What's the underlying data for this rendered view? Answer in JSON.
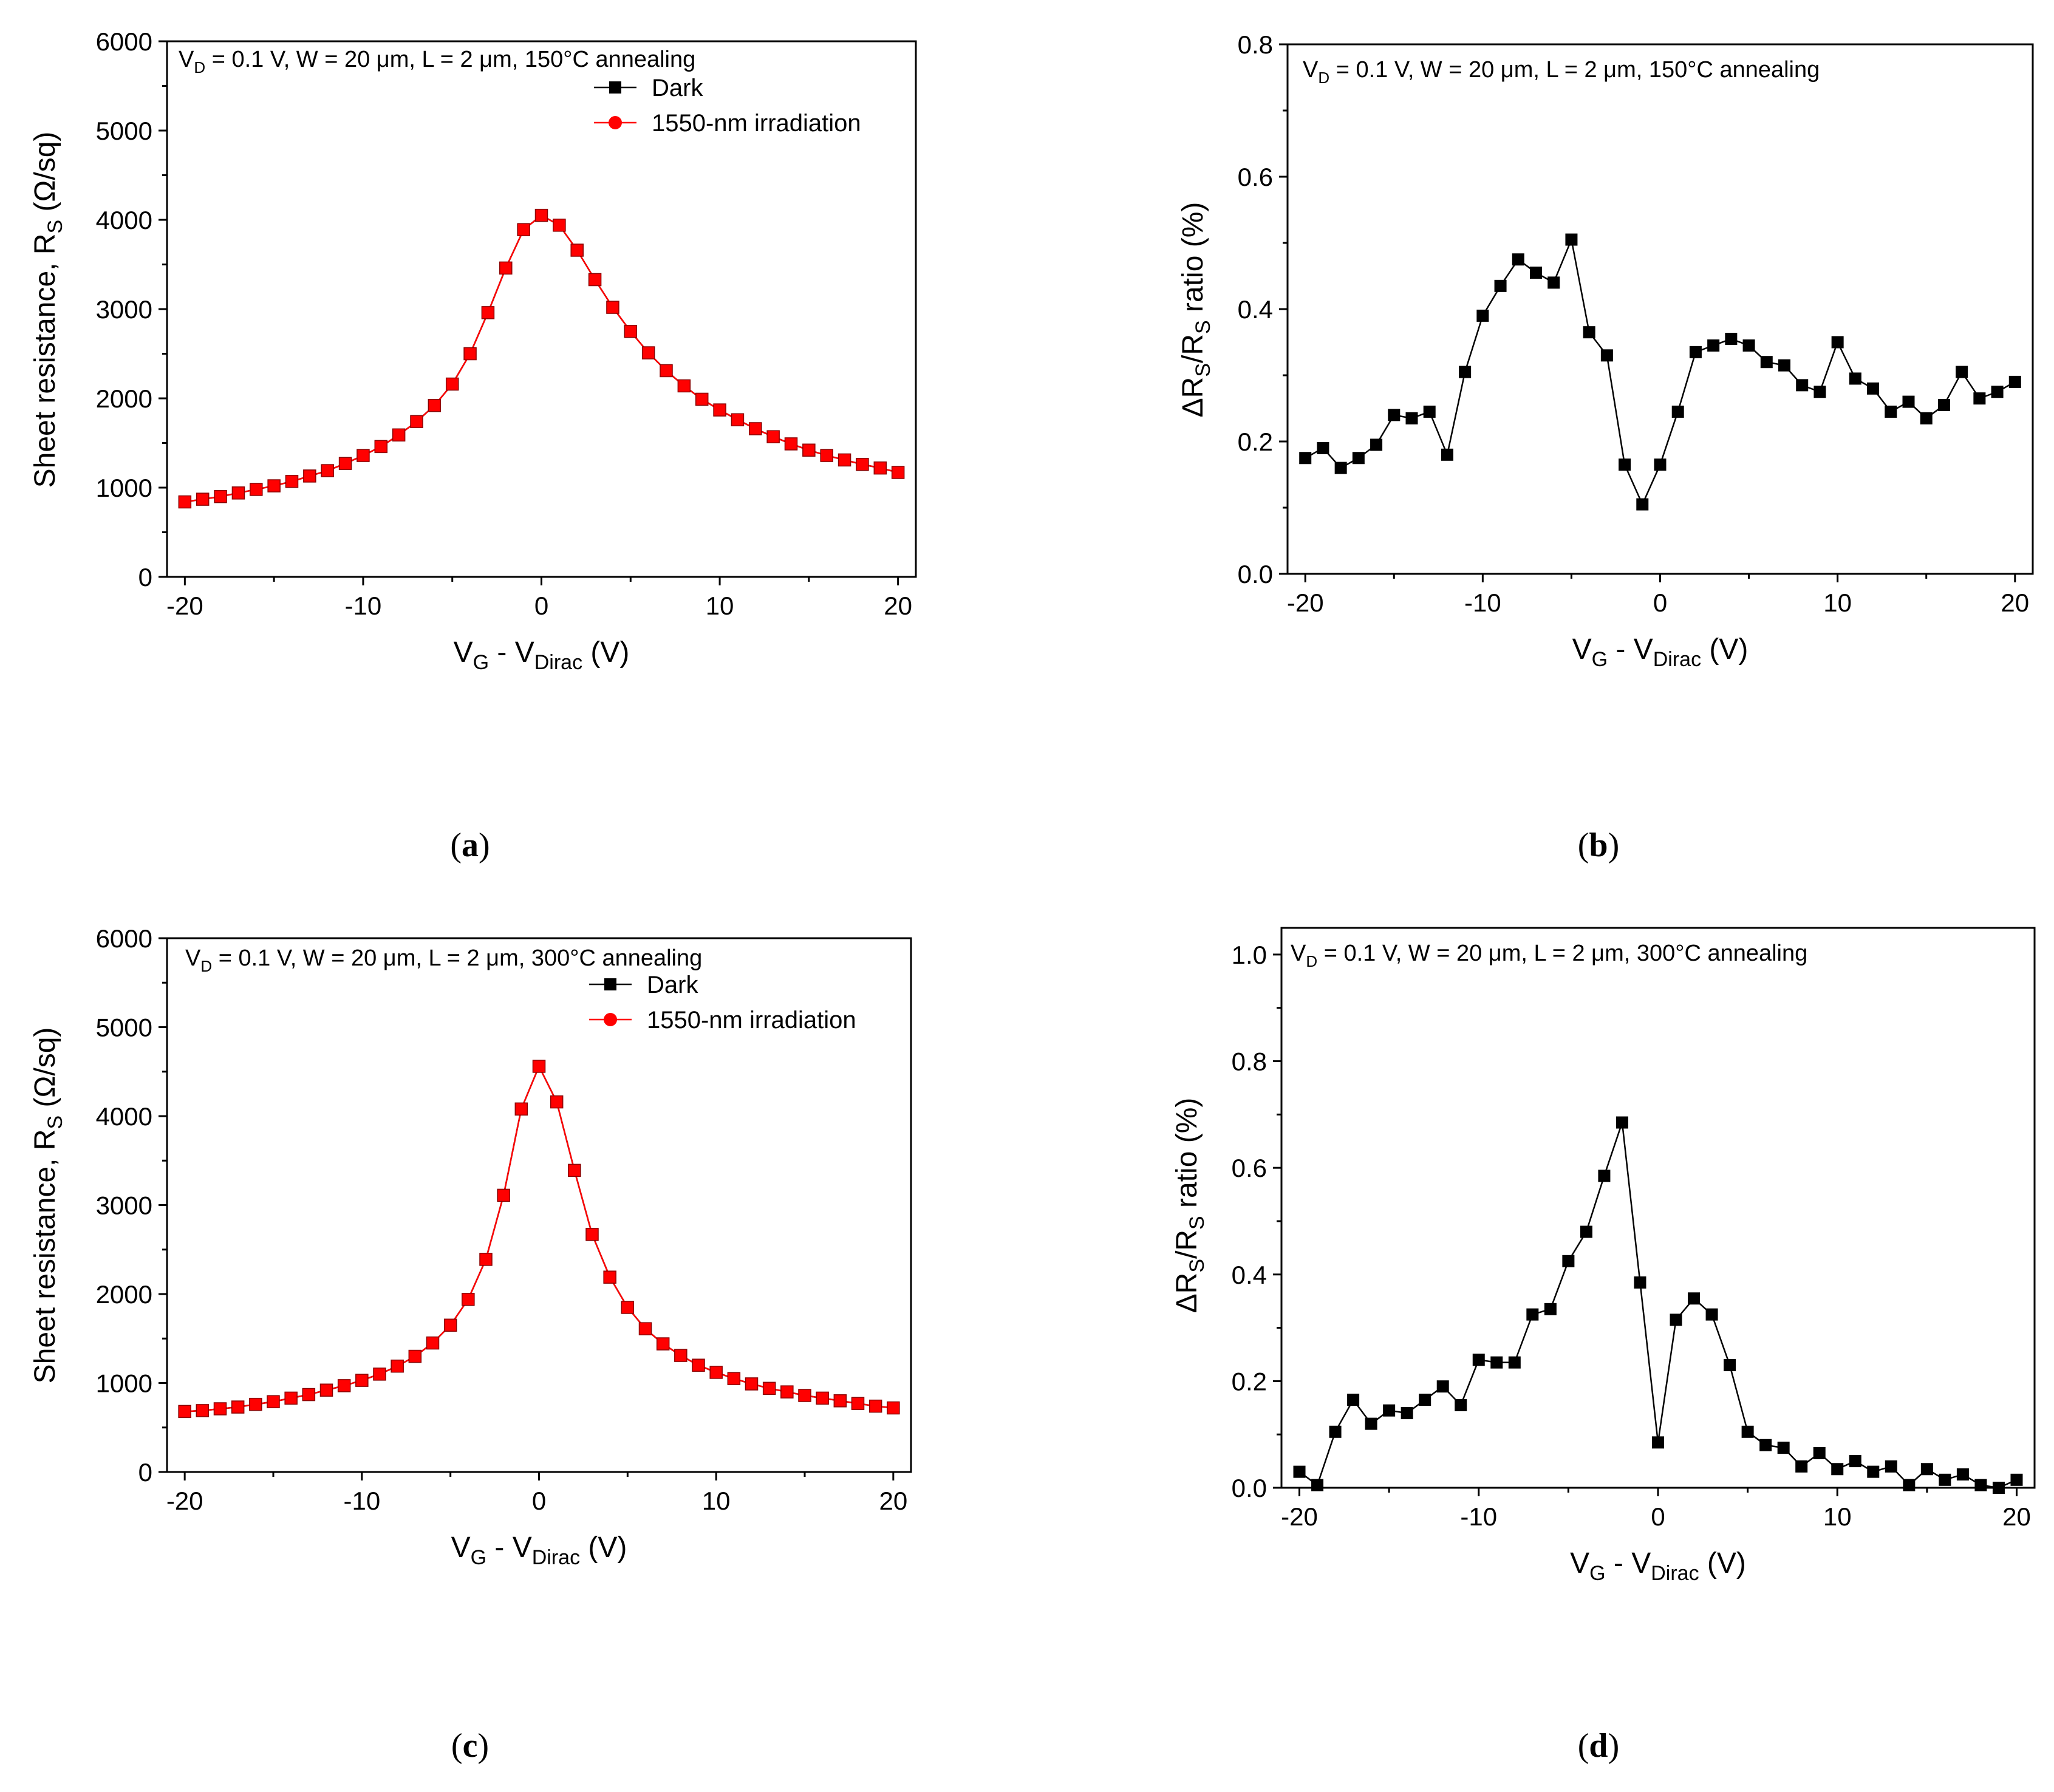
{
  "figure": {
    "captions": [
      "(a)",
      "(b)",
      "(c)",
      "(d)"
    ]
  },
  "chart_data": [
    {
      "id": "a",
      "type": "line",
      "caption": "(a)",
      "annotation": {
        "prefix": "V",
        "sub": "D",
        "rest": " = 0.1 V, W = 20 μm, L = 2 μm, 150°C annealing"
      },
      "xlabel": {
        "main": "V",
        "sub1": "G",
        "mid": " - V",
        "sub2": "Dirac",
        "tail": " (V)"
      },
      "ylabel": {
        "main": "Sheet resistance, R",
        "sub": "S",
        "tail": " (Ω/sq)"
      },
      "xlim": [
        -21,
        21
      ],
      "ylim": [
        0,
        6000
      ],
      "xticks": [
        -20,
        -10,
        0,
        10,
        20
      ],
      "yticks": [
        0,
        1000,
        2000,
        3000,
        4000,
        5000,
        6000
      ],
      "x": [
        -20,
        -19,
        -18,
        -17,
        -16,
        -15,
        -14,
        -13,
        -12,
        -11,
        -10,
        -9,
        -8,
        -7,
        -6,
        -5,
        -4,
        -3,
        -2,
        -1,
        0,
        1,
        2,
        3,
        4,
        5,
        6,
        7,
        8,
        9,
        10,
        11,
        12,
        13,
        14,
        15,
        16,
        17,
        18,
        19,
        20
      ],
      "series": [
        {
          "name": "Dark",
          "color": "#000000",
          "values": [
            840,
            870,
            900,
            940,
            980,
            1020,
            1070,
            1130,
            1190,
            1270,
            1360,
            1460,
            1590,
            1740,
            1920,
            2160,
            2500,
            2960,
            3460,
            3890,
            4050,
            3940,
            3660,
            3330,
            3020,
            2750,
            2510,
            2310,
            2140,
            1990,
            1870,
            1760,
            1660,
            1570,
            1490,
            1420,
            1360,
            1310,
            1260,
            1220,
            1170
          ]
        },
        {
          "name": "1550-nm irradiation",
          "color": "#ff0000",
          "values": [
            840,
            870,
            900,
            940,
            980,
            1020,
            1070,
            1130,
            1190,
            1270,
            1360,
            1460,
            1590,
            1740,
            1920,
            2160,
            2500,
            2960,
            3460,
            3890,
            4050,
            3940,
            3660,
            3330,
            3020,
            2750,
            2510,
            2310,
            2140,
            1990,
            1870,
            1760,
            1660,
            1570,
            1490,
            1420,
            1360,
            1310,
            1260,
            1220,
            1170
          ]
        }
      ],
      "legend": "top-right"
    },
    {
      "id": "b",
      "type": "line",
      "caption": "(b)",
      "annotation": {
        "prefix": "V",
        "sub": "D",
        "rest": " = 0.1 V, W = 20 μm, L = 2 μm, 150°C annealing"
      },
      "xlabel": {
        "main": "V",
        "sub1": "G",
        "mid": " - V",
        "sub2": "Dirac",
        "tail": " (V)"
      },
      "ylabel": {
        "main": "ΔR",
        "sub": "S",
        "mid": "/R",
        "sub2": "S",
        "tail": " ratio (%)"
      },
      "xlim": [
        -21,
        21
      ],
      "ylim": [
        0,
        0.8
      ],
      "xticks": [
        -20,
        -10,
        0,
        10,
        20
      ],
      "yticks": [
        "0.0",
        "0.2",
        "0.4",
        "0.6",
        "0.8"
      ],
      "x": [
        -20,
        -19,
        -18,
        -17,
        -16,
        -15,
        -14,
        -13,
        -12,
        -11,
        -10,
        -9,
        -8,
        -7,
        -6,
        -5,
        -4,
        -3,
        -2,
        -1,
        0,
        1,
        2,
        3,
        4,
        5,
        6,
        7,
        8,
        9,
        10,
        11,
        12,
        13,
        14,
        15,
        16,
        17,
        18,
        19,
        20
      ],
      "series": [
        {
          "name": "ΔRs/Rs",
          "color": "#000000",
          "values": [
            0.175,
            0.19,
            0.16,
            0.175,
            0.195,
            0.24,
            0.235,
            0.245,
            0.18,
            0.305,
            0.39,
            0.435,
            0.475,
            0.455,
            0.44,
            0.505,
            0.365,
            0.33,
            0.165,
            0.105,
            0.165,
            0.245,
            0.335,
            0.345,
            0.355,
            0.345,
            0.32,
            0.315,
            0.285,
            0.275,
            0.35,
            0.295,
            0.28,
            0.245,
            0.26,
            0.235,
            0.255,
            0.305,
            0.265,
            0.275,
            0.29
          ]
        }
      ]
    },
    {
      "id": "c",
      "type": "line",
      "caption": "(c)",
      "annotation": {
        "prefix": "V",
        "sub": "D",
        "rest": " = 0.1 V, W = 20 μm, L = 2 μm, 300°C annealing"
      },
      "xlabel": {
        "main": "V",
        "sub1": "G",
        "mid": " - V",
        "sub2": "Dirac",
        "tail": " (V)"
      },
      "ylabel": {
        "main": "Sheet resistance, R",
        "sub": "S",
        "tail": " (Ω/sq)"
      },
      "xlim": [
        -21,
        21
      ],
      "ylim": [
        0,
        6000
      ],
      "xticks": [
        -20,
        -10,
        0,
        10,
        20
      ],
      "yticks": [
        0,
        1000,
        2000,
        3000,
        4000,
        5000,
        6000
      ],
      "x": [
        -20,
        -19,
        -18,
        -17,
        -16,
        -15,
        -14,
        -13,
        -12,
        -11,
        -10,
        -9,
        -8,
        -7,
        -6,
        -5,
        -4,
        -3,
        -2,
        -1,
        0,
        1,
        2,
        3,
        4,
        5,
        6,
        7,
        8,
        9,
        10,
        11,
        12,
        13,
        14,
        15,
        16,
        17,
        18,
        19,
        20
      ],
      "series": [
        {
          "name": "Dark",
          "color": "#000000",
          "values": [
            680,
            690,
            710,
            730,
            760,
            790,
            830,
            870,
            920,
            970,
            1030,
            1100,
            1190,
            1300,
            1450,
            1650,
            1940,
            2390,
            3110,
            4080,
            4560,
            4160,
            3390,
            2670,
            2190,
            1850,
            1610,
            1440,
            1310,
            1200,
            1120,
            1050,
            990,
            940,
            900,
            860,
            830,
            800,
            770,
            740,
            720
          ]
        },
        {
          "name": "1550-nm irradiation",
          "color": "#ff0000",
          "values": [
            680,
            690,
            710,
            730,
            760,
            790,
            830,
            870,
            920,
            970,
            1030,
            1100,
            1190,
            1300,
            1450,
            1650,
            1940,
            2390,
            3110,
            4080,
            4560,
            4160,
            3390,
            2670,
            2190,
            1850,
            1610,
            1440,
            1310,
            1200,
            1120,
            1050,
            990,
            940,
            900,
            860,
            830,
            800,
            770,
            740,
            720
          ]
        }
      ],
      "legend": "top-right"
    },
    {
      "id": "d",
      "type": "line",
      "caption": "(d)",
      "annotation": {
        "prefix": "V",
        "sub": "D",
        "rest": " = 0.1 V, W = 20 μm, L = 2 μm, 300°C annealing"
      },
      "xlabel": {
        "main": "V",
        "sub1": "G",
        "mid": " - V",
        "sub2": "Dirac",
        "tail": " (V)"
      },
      "ylabel": {
        "main": "ΔR",
        "sub": "S",
        "mid": "/R",
        "sub2": "S",
        "tail": " ratio (%)"
      },
      "xlim": [
        -21,
        21
      ],
      "ylim": [
        0,
        1.05
      ],
      "xticks": [
        -20,
        -10,
        0,
        10,
        20
      ],
      "yticks": [
        "0.0",
        "0.2",
        "0.4",
        "0.6",
        "0.8",
        "1.0"
      ],
      "x": [
        -20,
        -19,
        -18,
        -17,
        -16,
        -15,
        -14,
        -13,
        -12,
        -11,
        -10,
        -9,
        -8,
        -7,
        -6,
        -5,
        -4,
        -3,
        -2,
        -1,
        0,
        1,
        2,
        3,
        4,
        5,
        6,
        7,
        8,
        9,
        10,
        11,
        12,
        13,
        14,
        15,
        16,
        17,
        18,
        19,
        20
      ],
      "series": [
        {
          "name": "ΔRs/Rs",
          "color": "#000000",
          "values": [
            0.03,
            0.005,
            0.105,
            0.165,
            0.12,
            0.145,
            0.14,
            0.165,
            0.19,
            0.155,
            0.24,
            0.235,
            0.235,
            0.325,
            0.335,
            0.425,
            0.48,
            0.585,
            0.685,
            0.385,
            0.085,
            0.315,
            0.355,
            0.325,
            0.23,
            0.105,
            0.08,
            0.075,
            0.04,
            0.065,
            0.035,
            0.05,
            0.03,
            0.04,
            0.005,
            0.035,
            0.015,
            0.025,
            0.005,
            0.0,
            0.015
          ]
        }
      ]
    }
  ]
}
